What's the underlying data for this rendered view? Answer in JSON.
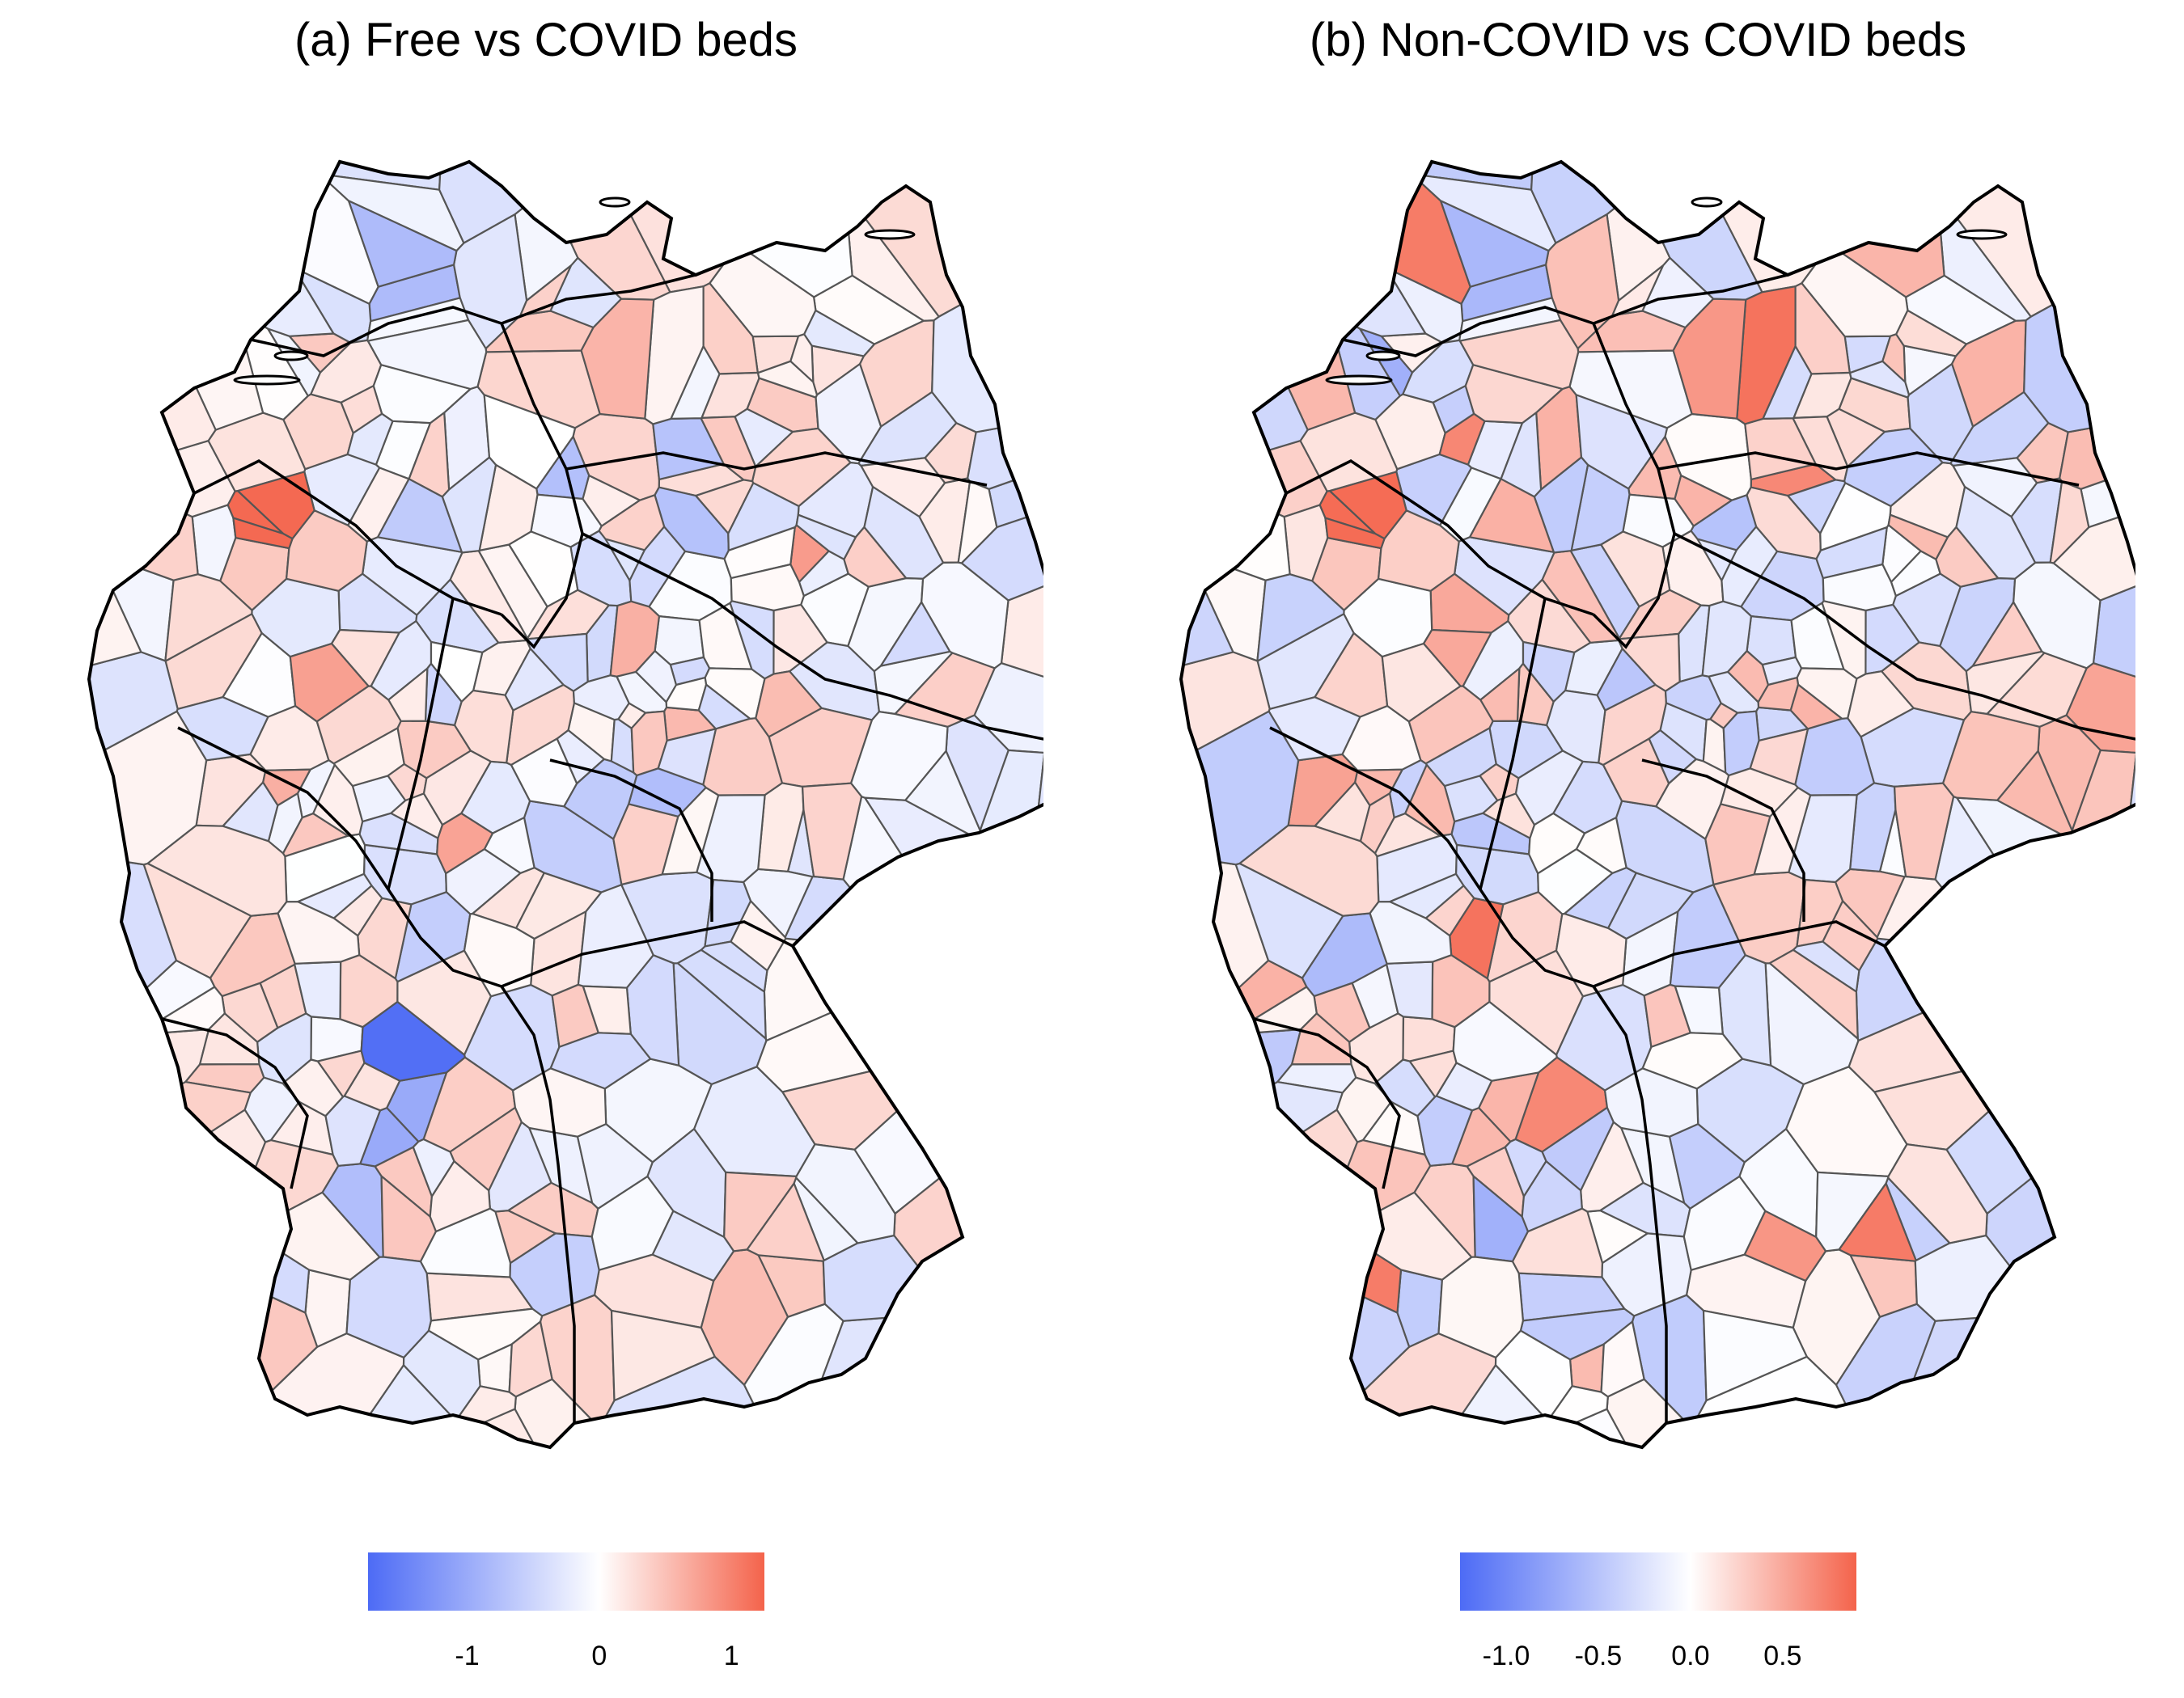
{
  "colors": {
    "low": "#4d6bf5",
    "mid": "#ffffff",
    "high": "#f4634b",
    "district_border": "#555555",
    "state_border": "#000000"
  },
  "panels": [
    {
      "id": "a",
      "title": "(a) Free vs COVID beds",
      "legend": {
        "min": -1.75,
        "max": 1.25,
        "ticks": [
          {
            "value": -1,
            "label": "-1"
          },
          {
            "value": 0,
            "label": "0"
          },
          {
            "value": 1,
            "label": "1"
          }
        ]
      },
      "seed": 17,
      "highlights": [
        {
          "region": "coesfeld-area",
          "value": 1.2
        },
        {
          "region": "mecklenburg-center",
          "value": 0.6
        },
        {
          "region": "rhein-neckar",
          "value": -1.7
        },
        {
          "region": "stuttgart-area",
          "value": -1.0
        },
        {
          "region": "freiburg-area",
          "value": -1.0
        },
        {
          "region": "hamburg-north",
          "value": -0.8
        }
      ]
    },
    {
      "id": "b",
      "title": "(b) Non-COVID vs COVID beds",
      "legend": {
        "min": -1.25,
        "max": 0.9,
        "ticks": [
          {
            "value": -1.0,
            "label": "-1.0"
          },
          {
            "value": -0.5,
            "label": "-0.5"
          },
          {
            "value": 0.0,
            "label": "0.0"
          },
          {
            "value": 0.5,
            "label": "0.5"
          }
        ]
      },
      "seed": 53,
      "highlights": [
        {
          "region": "coesfeld-area",
          "value": 0.85
        },
        {
          "region": "mecklenburg-center",
          "value": 0.6
        },
        {
          "region": "hamburg-north",
          "value": -0.6
        },
        {
          "region": "kassel-area",
          "value": 0.5
        },
        {
          "region": "east-saxony",
          "value": 0.4
        }
      ]
    }
  ]
}
